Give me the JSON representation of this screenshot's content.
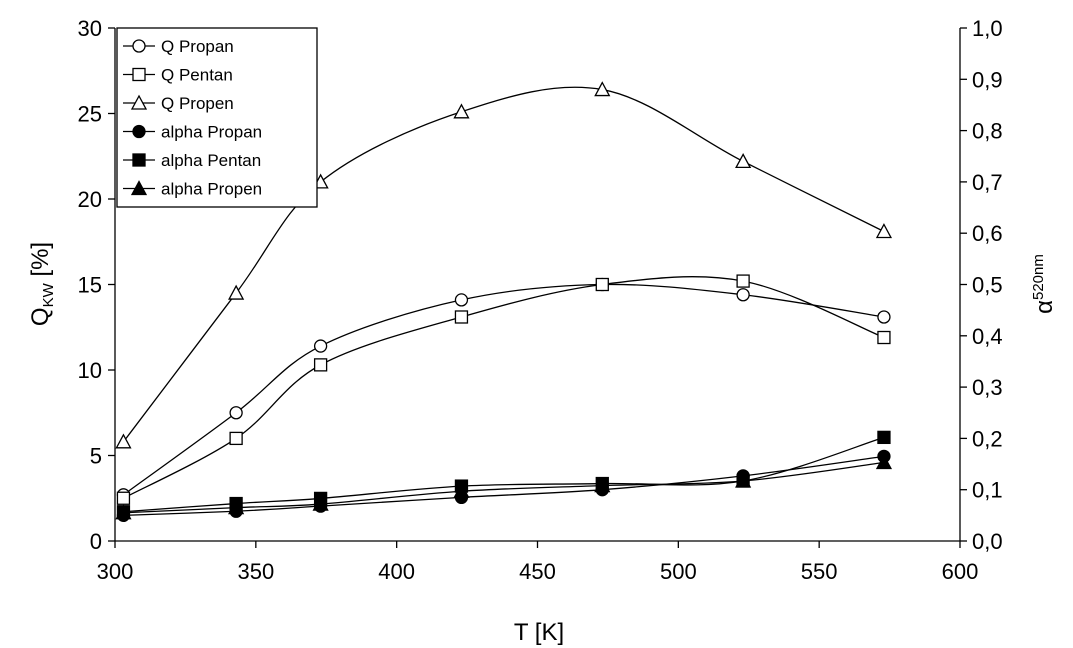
{
  "chart_data": {
    "type": "line",
    "x": [
      303,
      343,
      373,
      423,
      473,
      523,
      573
    ],
    "xlabel": "T [K]",
    "xlim": [
      300,
      600
    ],
    "xticks": [
      "300",
      "350",
      "400",
      "450",
      "500",
      "550",
      "600"
    ],
    "ylabel": {
      "main": "Q",
      "sub": "KW",
      "unit": " [%]"
    },
    "ylim": [
      0,
      30
    ],
    "yticks": [
      "0",
      "5",
      "10",
      "15",
      "20",
      "25",
      "30"
    ],
    "y2label": {
      "main": "α",
      "sup": "520nm"
    },
    "y2lim": [
      0,
      1.0
    ],
    "y2ticks": [
      "0,0",
      "0,1",
      "0,2",
      "0,3",
      "0,4",
      "0,5",
      "0,6",
      "0,7",
      "0,8",
      "0,9",
      "1,0"
    ],
    "legend_position": "top-left",
    "grid": false,
    "series": [
      {
        "name": "Q Propan",
        "axis": "left",
        "marker": "circle-open",
        "values": [
          2.7,
          7.5,
          11.4,
          14.1,
          15.0,
          14.4,
          13.1
        ]
      },
      {
        "name": "Q Pentan",
        "axis": "left",
        "marker": "square-open",
        "values": [
          2.5,
          6.0,
          10.3,
          13.1,
          15.0,
          15.2,
          11.9
        ]
      },
      {
        "name": "Q Propen",
        "axis": "left",
        "marker": "triangle-open",
        "values": [
          5.8,
          14.5,
          21.0,
          25.1,
          26.4,
          22.2,
          18.1
        ]
      },
      {
        "name": "alpha Propan",
        "axis": "right",
        "marker": "circle-filled",
        "values": [
          0.05,
          0.058,
          0.068,
          0.085,
          0.1,
          0.127,
          0.165
        ]
      },
      {
        "name": "alpha Pentan",
        "axis": "right",
        "marker": "square-filled",
        "values": [
          0.057,
          0.073,
          0.083,
          0.107,
          0.112,
          0.117,
          0.202
        ]
      },
      {
        "name": "alpha Propen",
        "axis": "right",
        "marker": "triangle-filled",
        "values": [
          0.055,
          0.065,
          0.072,
          0.097,
          0.108,
          0.117,
          0.153
        ]
      }
    ]
  }
}
